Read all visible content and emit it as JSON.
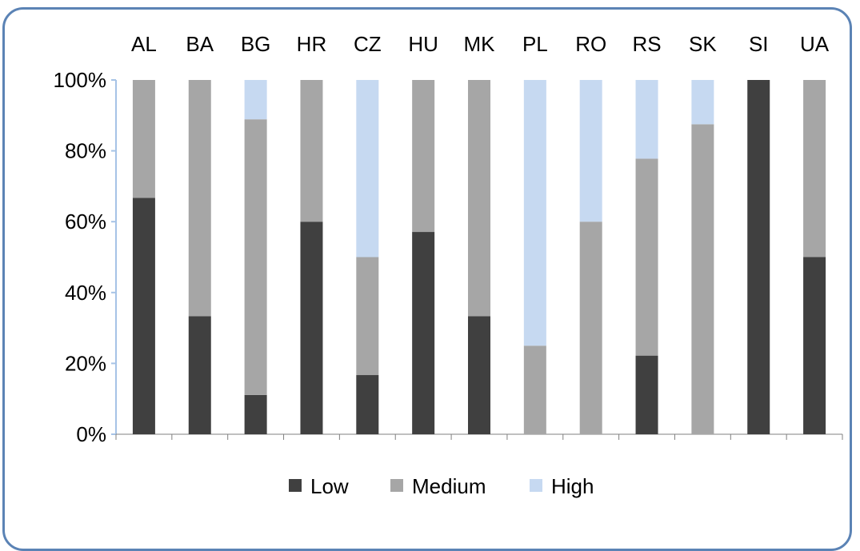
{
  "chart_data": {
    "type": "bar",
    "stacked": true,
    "percent": true,
    "categories": [
      "AL",
      "BA",
      "BG",
      "HR",
      "CZ",
      "HU",
      "MK",
      "PL",
      "RO",
      "RS",
      "SK",
      "SI",
      "UA"
    ],
    "series": [
      {
        "name": "Low",
        "color": "#404040",
        "values": [
          66.7,
          33.3,
          11.1,
          60,
          16.7,
          57.1,
          33.3,
          0,
          0,
          22.2,
          0,
          100,
          50
        ]
      },
      {
        "name": "Medium",
        "color": "#a6a6a6",
        "values": [
          33.3,
          66.7,
          77.8,
          40,
          33.3,
          42.9,
          66.7,
          25,
          60,
          55.6,
          87.5,
          0,
          50
        ]
      },
      {
        "name": "High",
        "color": "#c6d9f1",
        "values": [
          0,
          0,
          11.1,
          0,
          50,
          0,
          0,
          75,
          40,
          22.2,
          12.5,
          0,
          0
        ]
      }
    ],
    "yticks": [
      "0%",
      "20%",
      "40%",
      "60%",
      "80%",
      "100%"
    ],
    "ylim": [
      0,
      100
    ],
    "category_axis_position": "top",
    "legend_position": "bottom",
    "grid": false
  }
}
